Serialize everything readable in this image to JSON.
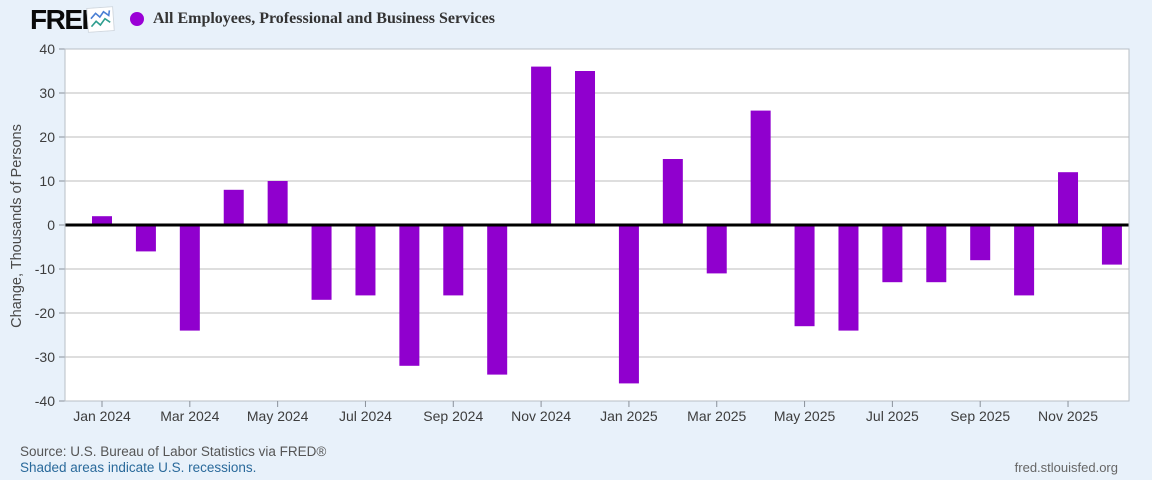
{
  "header": {
    "logo_text": "FRED",
    "logo_registered": "®",
    "series_title": "All Employees, Professional and Business Services"
  },
  "chart_data": {
    "type": "bar",
    "title": "All Employees, Professional and Business Services",
    "xlabel": "",
    "ylabel": "Change, Thousands of Persons",
    "ylim": [
      -40,
      40
    ],
    "yticks": [
      40,
      30,
      20,
      10,
      0,
      -10,
      -20,
      -30,
      -40
    ],
    "grid": true,
    "legend_position": "top-left",
    "bar_color": "#9000CE",
    "categories": [
      "Jan 2024",
      "Feb 2024",
      "Mar 2024",
      "Apr 2024",
      "May 2024",
      "Jun 2024",
      "Jul 2024",
      "Aug 2024",
      "Sep 2024",
      "Oct 2024",
      "Nov 2024",
      "Dec 2024",
      "Jan 2025",
      "Feb 2025",
      "Mar 2025",
      "Apr 2025",
      "May 2025",
      "Jun 2025",
      "Jul 2025",
      "Aug 2025",
      "Sep 2025",
      "Oct 2025",
      "Nov 2025",
      "Dec 2025"
    ],
    "values": [
      2,
      -6,
      -24,
      8,
      10,
      -17,
      -16,
      -32,
      -16,
      -34,
      36,
      35,
      -36,
      15,
      -11,
      26,
      -23,
      -24,
      -13,
      -13,
      -8,
      -16,
      12,
      -9
    ],
    "xtick_labels": [
      "Jan 2024",
      "Mar 2024",
      "May 2024",
      "Jul 2024",
      "Sep 2024",
      "Nov 2024",
      "Jan 2025",
      "Mar 2025",
      "May 2025",
      "Jul 2025",
      "Sep 2025",
      "Nov 2025"
    ],
    "xtick_every": 2
  },
  "footer": {
    "source": "Source: U.S. Bureau of Labor Statistics via FRED®",
    "recession_note": "Shaded areas indicate U.S. recessions.",
    "site": "fred.stlouisfed.org"
  },
  "colors": {
    "bar": "#9000CE",
    "legend_dot": "#9A00D6",
    "background": "#E8F1FA",
    "plot_background": "#FFFFFF",
    "gridline": "#C9C9C9",
    "plot_border": "#B9BFC6",
    "zero_line": "#000000",
    "tick": "#8A919A",
    "tick_label": "#3D3D3D",
    "link": "#2A6A9B"
  }
}
